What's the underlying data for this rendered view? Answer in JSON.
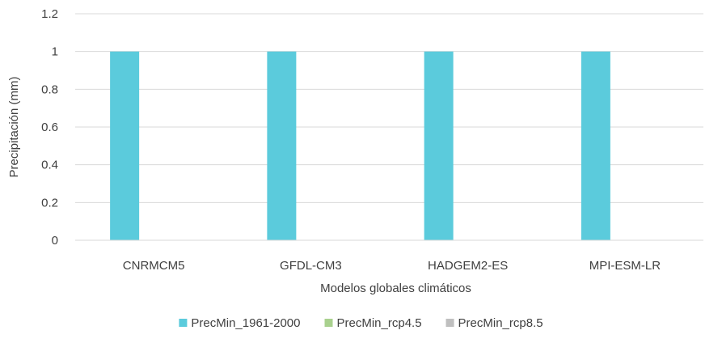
{
  "chart_data": {
    "type": "bar",
    "title": "",
    "xlabel": "Modelos globales climáticos",
    "ylabel": "Precipitación (mm)",
    "ylim": [
      0,
      1.2
    ],
    "yticks": [
      "0",
      "0.2",
      "0.4",
      "0.6",
      "0.8",
      "1",
      "1.2"
    ],
    "grid": true,
    "legend_position": "bottom",
    "categories": [
      "CNRMCM5",
      "GFDL-CM3",
      "HADGEM2-ES",
      "MPI-ESM-LR"
    ],
    "series": [
      {
        "name": "PrecMin_1961-2000",
        "color": "#5BCBDC",
        "values": [
          1,
          1,
          1,
          1
        ]
      },
      {
        "name": "PrecMin_rcp4.5",
        "color": "#A9D18E",
        "values": [
          0,
          0,
          0,
          0
        ]
      },
      {
        "name": "PrecMin_rcp8.5",
        "color": "#BFBFBF",
        "values": [
          0,
          0,
          0,
          0
        ]
      }
    ]
  }
}
